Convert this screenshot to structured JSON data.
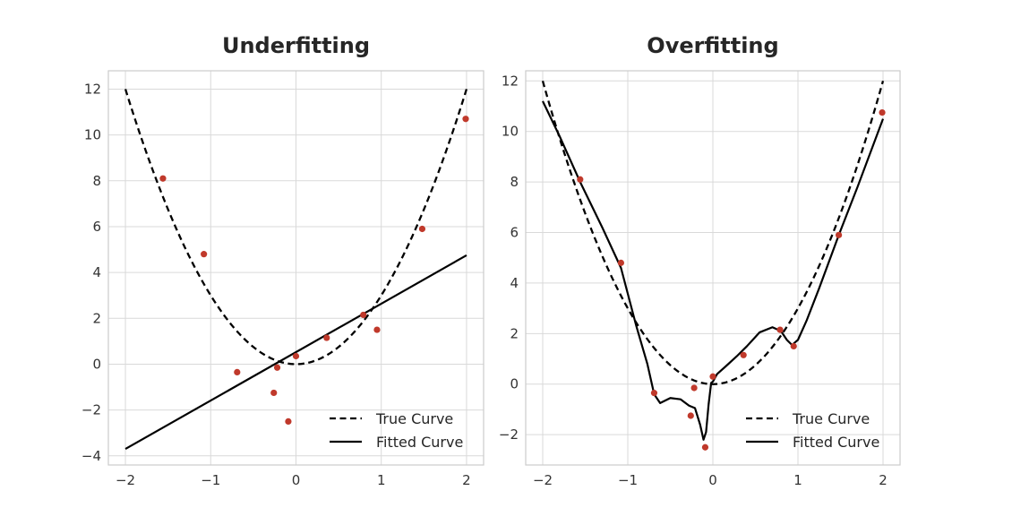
{
  "chart_data": [
    {
      "type": "line",
      "title": "Underfitting",
      "xlim": [
        -2.2,
        2.2
      ],
      "ylim": [
        -4.4,
        12.8
      ],
      "xticks": [
        -2,
        -1,
        0,
        1,
        2
      ],
      "yticks": [
        -4,
        -2,
        0,
        2,
        4,
        6,
        8,
        10,
        12
      ],
      "xtick_labels": [
        "−2",
        "−1",
        "0",
        "1",
        "2"
      ],
      "ytick_labels": [
        "−4",
        "−2",
        "0",
        "2",
        "4",
        "6",
        "8",
        "10",
        "12"
      ],
      "grid": true,
      "legend_position": "lower-right",
      "true_curve": {
        "name": "True Curve",
        "style": "dashed",
        "color": "#000000",
        "formula": "3x^2",
        "x_range": [
          -2,
          2
        ]
      },
      "fitted_curve": {
        "name": "Fitted Curve",
        "style": "solid",
        "color": "#000000",
        "x": [
          -2,
          2
        ],
        "y": [
          -3.7,
          4.75
        ]
      },
      "points": {
        "color": "#c0392b",
        "x": [
          -1.56,
          -1.08,
          -0.69,
          -0.26,
          -0.22,
          -0.09,
          0.0,
          0.36,
          0.79,
          0.95,
          1.48,
          1.99
        ],
        "y": [
          8.1,
          4.8,
          -0.35,
          -1.25,
          -0.15,
          -2.5,
          0.35,
          1.15,
          2.15,
          1.5,
          5.9,
          10.7
        ]
      }
    },
    {
      "type": "line",
      "title": "Overfitting",
      "xlim": [
        -2.2,
        2.2
      ],
      "ylim": [
        -3.2,
        12.4
      ],
      "xticks": [
        -2,
        -1,
        0,
        1,
        2
      ],
      "yticks": [
        -2,
        0,
        2,
        4,
        6,
        8,
        10,
        12
      ],
      "xtick_labels": [
        "−2",
        "−1",
        "0",
        "1",
        "2"
      ],
      "ytick_labels": [
        "−2",
        "0",
        "2",
        "4",
        "6",
        "8",
        "10",
        "12"
      ],
      "grid": true,
      "legend_position": "lower-right",
      "true_curve": {
        "name": "True Curve",
        "style": "dashed",
        "color": "#000000",
        "formula": "3x^2",
        "x_range": [
          -2,
          2
        ]
      },
      "fitted_curve": {
        "name": "Fitted Curve",
        "style": "solid",
        "color": "#000000",
        "x": [
          -2.0,
          -1.8,
          -1.56,
          -1.3,
          -1.08,
          -0.9,
          -0.77,
          -0.69,
          -0.62,
          -0.5,
          -0.38,
          -0.28,
          -0.21,
          -0.15,
          -0.11,
          -0.08,
          -0.05,
          -0.02,
          0.0,
          0.05,
          0.15,
          0.28,
          0.4,
          0.55,
          0.7,
          0.8,
          0.87,
          0.93,
          1.0,
          1.1,
          1.25,
          1.48,
          1.7,
          2.0
        ],
        "y": [
          11.2,
          9.8,
          8.0,
          6.2,
          4.6,
          2.3,
          0.8,
          -0.4,
          -0.75,
          -0.55,
          -0.6,
          -0.85,
          -0.95,
          -1.6,
          -2.2,
          -1.9,
          -0.8,
          0.05,
          0.1,
          0.4,
          0.7,
          1.1,
          1.5,
          2.05,
          2.25,
          2.1,
          1.75,
          1.55,
          1.75,
          2.5,
          3.8,
          5.9,
          7.8,
          10.5
        ]
      },
      "points": {
        "color": "#c0392b",
        "x": [
          -1.56,
          -1.08,
          -0.69,
          -0.26,
          -0.22,
          -0.09,
          0.0,
          0.36,
          0.79,
          0.95,
          1.48,
          1.99
        ],
        "y": [
          8.1,
          4.8,
          -0.35,
          -1.25,
          -0.15,
          -2.5,
          0.3,
          1.15,
          2.15,
          1.5,
          5.9,
          10.75
        ]
      }
    }
  ]
}
